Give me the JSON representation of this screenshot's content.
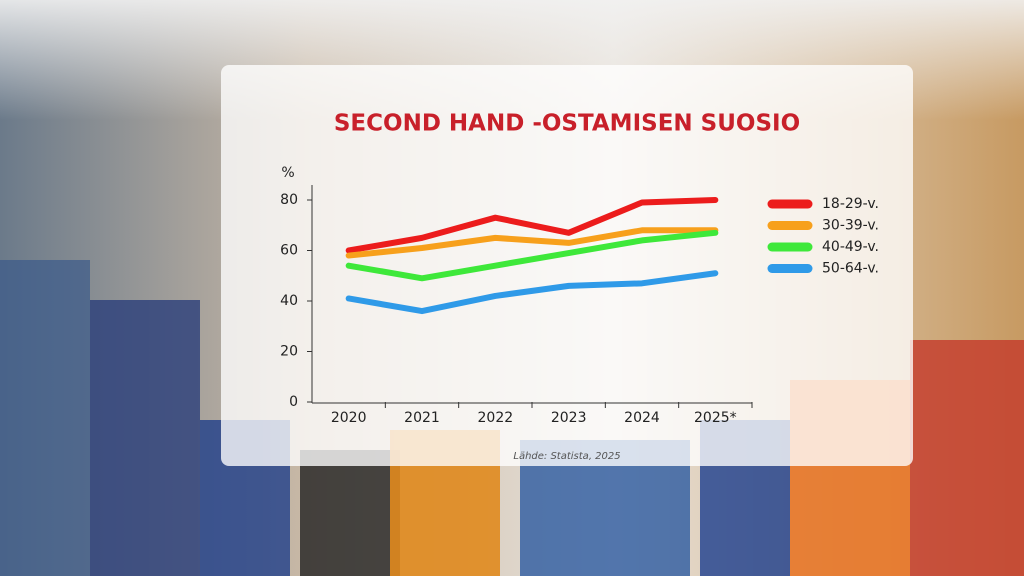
{
  "chart_data": {
    "type": "line",
    "title": "SECOND HAND -OSTAMISEN SUOSIO",
    "y_label": "%",
    "source": "Lähde: Statista, 2025",
    "categories": [
      "2020",
      "2021",
      "2022",
      "2023",
      "2024",
      "2025*"
    ],
    "series": [
      {
        "name": "18-29-v.",
        "color": "#ec1c1c",
        "values": [
          60,
          65,
          73,
          67,
          79,
          80
        ]
      },
      {
        "name": "30-39-v.",
        "color": "#f7a01c",
        "values": [
          58,
          61,
          65,
          63,
          68,
          68
        ]
      },
      {
        "name": "40-49-v.",
        "color": "#3ee83a",
        "values": [
          54,
          49,
          54,
          59,
          64,
          67
        ]
      },
      {
        "name": "50-64-v.",
        "color": "#2f9ae8",
        "values": [
          41,
          36,
          42,
          46,
          47,
          51
        ]
      }
    ],
    "ylim": [
      0,
      80
    ],
    "yticks": [
      0,
      20,
      40,
      60,
      80
    ]
  }
}
